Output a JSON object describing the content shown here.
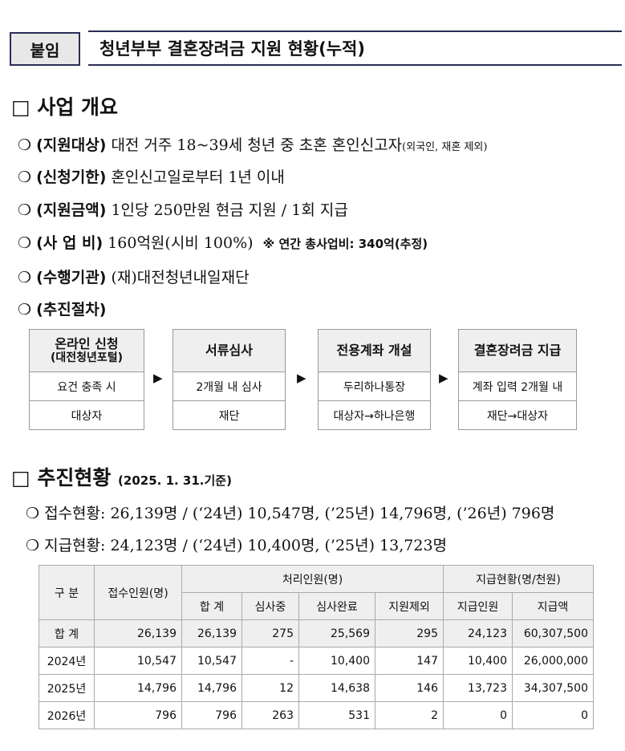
{
  "header": {
    "tag": "붙임",
    "title": "청년부부 결혼장려금 지원 현황(누적)"
  },
  "overview": {
    "heading": "□ 사업 개요",
    "items": [
      {
        "label": "(지원대상)",
        "text": "대전 거주 18~39세 청년 중 초혼 혼인신고자",
        "small": "(외국인, 재혼 제외)"
      },
      {
        "label": "(신청기한)",
        "text": "혼인신고일로부터 1년 이내"
      },
      {
        "label": "(지원금액)",
        "text": "1인당 250만원 현금 지원 / 1회 지급"
      },
      {
        "label": "(사 업 비)",
        "text": "160억원(시비 100%)",
        "note": "※ 연간 총사업비: 340억(추정)"
      },
      {
        "label": "(수행기관)",
        "text": "(재)대전청년내일재단"
      },
      {
        "label": "(추진절차)",
        "text": ""
      }
    ],
    "bullet": "❍",
    "steps": [
      {
        "title": "온라인 신청",
        "sub": "(대전청년포털)",
        "row1": "요건 충족 시",
        "row2": "대상자"
      },
      {
        "title": "서류심사",
        "sub": "",
        "row1": "2개월 내 심사",
        "row2": "재단"
      },
      {
        "title": "전용계좌 개설",
        "sub": "",
        "row1": "두리하나통장",
        "row2": "대상자→하나은행"
      },
      {
        "title": "결혼장려금 지급",
        "sub": "",
        "row1": "계좌 입력 2개월 내",
        "row2": "재단→대상자"
      }
    ],
    "arrow": "▶"
  },
  "status": {
    "heading": "□ 추진현황",
    "date": "(2025. 1. 31.기준)",
    "items": [
      "접수현황: 26,139명 / (‘24년) 10,547명, (’25년) 14,796명, (’26년) 796명",
      "지급현황: 24,123명 / (‘24년) 10,400명, (’25년) 13,723명"
    ]
  },
  "table": {
    "h": {
      "cat": "구 분",
      "recv": "접수인원(명)",
      "proc": "처리인원(명)",
      "pay": "지급현황(명/천원)",
      "sub": [
        "합 계",
        "심사중",
        "심사완료",
        "지원제외",
        "지급인원",
        "지급액"
      ]
    },
    "rows": [
      [
        "합 계",
        "26,139",
        "26,139",
        "275",
        "25,569",
        "295",
        "24,123",
        "60,307,500"
      ],
      [
        "2024년",
        "10,547",
        "10,547",
        "-",
        "10,400",
        "147",
        "10,400",
        "26,000,000"
      ],
      [
        "2025년",
        "14,796",
        "14,796",
        "12",
        "14,638",
        "146",
        "13,723",
        "34,307,500"
      ],
      [
        "2026년",
        "796",
        "796",
        "263",
        "531",
        "2",
        "0",
        "0"
      ]
    ]
  }
}
